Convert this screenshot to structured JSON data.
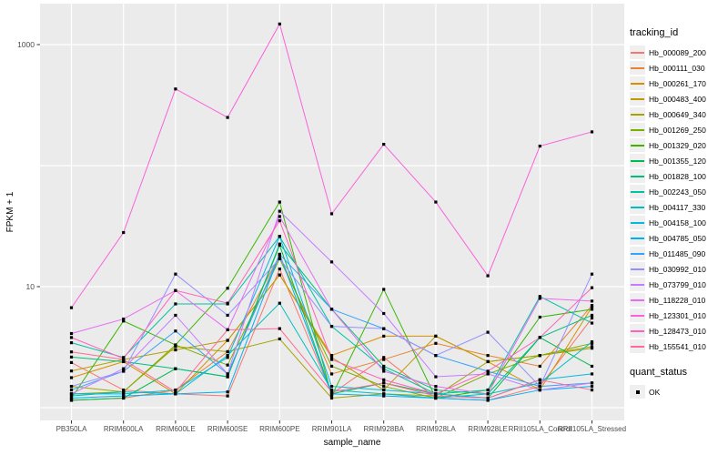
{
  "chart_data": {
    "type": "line",
    "title": "",
    "xlabel": "sample_name",
    "ylabel": "FPKM + 1",
    "y_scale": "log10",
    "ylim": [
      0.9,
      2200
    ],
    "grid": true,
    "legend_position": "right",
    "y_ticks": [
      {
        "value": 1000,
        "label": "1000"
      },
      {
        "value": 10,
        "label": "10"
      }
    ],
    "y_gridlines": [
      1,
      10,
      100,
      1000
    ],
    "categories": [
      "PB350LA",
      "RRIM600LA",
      "RRIM600LE",
      "RRIM600SE",
      "RRIM600PE",
      "RRIM901LA",
      "RRIM928BA",
      "RRIM928LA",
      "RRIM928LE",
      "RRII105LA_Control",
      "RRII105LA_Stressed"
    ],
    "point_shape": "square",
    "point_color": "#000000",
    "series": [
      {
        "name": "Hb_000089_200",
        "color": "#F8766D",
        "values": [
          2.36,
          1.4,
          1.3,
          1.25,
          14,
          1.3,
          2.6,
          1.2,
          1.15,
          1.5,
          5.5
        ]
      },
      {
        "name": "Hb_000111_030",
        "color": "#EA8331",
        "values": [
          1.15,
          1.2,
          1.4,
          2.9,
          18,
          1.9,
          2.5,
          3.4,
          2.7,
          2.2,
          7.0
        ]
      },
      {
        "name": "Hb_000261_170",
        "color": "#D89000",
        "values": [
          1.77,
          2.4,
          1.3,
          3.6,
          12.5,
          2.7,
          3.9,
          3.9,
          2.4,
          1.4,
          6.8
        ]
      },
      {
        "name": "Hb_000483_400",
        "color": "#C09B00",
        "values": [
          2.01,
          2.5,
          3.0,
          3.6,
          12.5,
          2.6,
          1.4,
          3.9,
          2.4,
          2.7,
          3.2
        ]
      },
      {
        "name": "Hb_000649_340",
        "color": "#A3A500",
        "values": [
          1.5,
          1.35,
          3.2,
          2.9,
          3.7,
          1.2,
          1.3,
          1.25,
          2.4,
          2.7,
          3.1
        ]
      },
      {
        "name": "Hb_001269_250",
        "color": "#7CAE00",
        "values": [
          1.3,
          1.35,
          3.3,
          2.25,
          17,
          2.2,
          1.5,
          1.2,
          1.9,
          2.7,
          3.4
        ]
      },
      {
        "name": "Hb_001329_020",
        "color": "#39B600",
        "values": [
          1.2,
          5.2,
          3.3,
          9.7,
          50,
          1.25,
          9.5,
          1.2,
          1.4,
          5.6,
          6.5
        ]
      },
      {
        "name": "Hb_001355_120",
        "color": "#00BB4E",
        "values": [
          1.15,
          1.2,
          2.1,
          1.8,
          22,
          1.3,
          1.6,
          1.3,
          1.2,
          3.8,
          2.2
        ]
      },
      {
        "name": "Hb_001828_100",
        "color": "#00BF7D",
        "values": [
          2.62,
          2.4,
          2.1,
          1.8,
          22.5,
          6.5,
          2.2,
          1.4,
          1.3,
          3.8,
          5.8
        ]
      },
      {
        "name": "Hb_002243_050",
        "color": "#00C1A3",
        "values": [
          3.44,
          2.6,
          7.2,
          7.2,
          26,
          4.7,
          2.1,
          1.3,
          1.4,
          8.3,
          5.0
        ]
      },
      {
        "name": "Hb_004117_330",
        "color": "#00BFC4",
        "values": [
          1.25,
          1.35,
          1.3,
          2.7,
          7.3,
          1.4,
          1.3,
          1.2,
          1.3,
          1.6,
          3.5
        ]
      },
      {
        "name": "Hb_004158_100",
        "color": "#00BAE0",
        "values": [
          1.3,
          1.3,
          1.4,
          2.6,
          26,
          1.5,
          1.4,
          1.3,
          1.2,
          1.7,
          1.9
        ]
      },
      {
        "name": "Hb_004785_050",
        "color": "#00B0F6",
        "values": [
          1.2,
          1.25,
          1.3,
          1.35,
          18.5,
          1.3,
          1.25,
          1.2,
          1.15,
          1.4,
          1.5
        ]
      },
      {
        "name": "Hb_011485_090",
        "color": "#35A2FF",
        "values": [
          1.4,
          2.0,
          4.3,
          1.9,
          18.5,
          6.5,
          4.5,
          2.7,
          2.0,
          1.5,
          1.6
        ]
      },
      {
        "name": "Hb_030992_010",
        "color": "#9590FF",
        "values": [
          1.5,
          2.0,
          12.7,
          5.8,
          17,
          4.7,
          4.5,
          2.7,
          4.2,
          1.5,
          12.7
        ]
      },
      {
        "name": "Hb_073799_010",
        "color": "#C77CFF",
        "values": [
          1.3,
          2.1,
          5.8,
          1.9,
          42,
          16,
          6.0,
          1.8,
          1.9,
          1.4,
          1.6
        ]
      },
      {
        "name": "Hb_118228_010",
        "color": "#E76BF3",
        "values": [
          4.1,
          5.4,
          9.3,
          4.4,
          38,
          6.5,
          2.0,
          1.5,
          1.3,
          8.0,
          7.6
        ]
      },
      {
        "name": "Hb_123301_010",
        "color": "#FA62DB",
        "values": [
          6.7,
          28,
          430,
          250,
          1480,
          40,
          150,
          50,
          12.3,
          145,
          190
        ]
      },
      {
        "name": "Hb_128473_010",
        "color": "#FF62BC",
        "values": [
          3.8,
          2.55,
          9.3,
          7.3,
          35,
          2.5,
          1.7,
          1.3,
          2.0,
          3.8,
          9.8
        ]
      },
      {
        "name": "Hb_155541_010",
        "color": "#FF6A98",
        "values": [
          2.89,
          2.5,
          1.35,
          4.4,
          4.5,
          1.35,
          1.6,
          1.25,
          1.2,
          1.7,
          1.4
        ]
      }
    ],
    "panel_background": "#EBEBEB",
    "gridline_color": "#FFFFFF",
    "axis_text_color": "#4D4D4D"
  },
  "legend": {
    "tracking_title": "tracking_id",
    "quant_title": "quant_status",
    "quant_items": [
      {
        "label": "OK"
      }
    ]
  }
}
